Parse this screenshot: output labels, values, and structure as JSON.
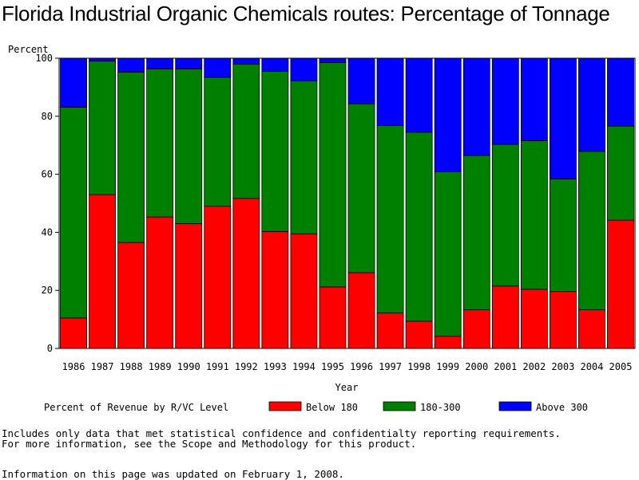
{
  "chart_data": {
    "type": "bar",
    "stacked": true,
    "title": "Florida Industrial Organic Chemicals routes: Percentage of Tonnage",
    "ylabel": "Percent",
    "xlabel": "Year",
    "ylim": [
      0,
      100
    ],
    "yticks": [
      0,
      20,
      40,
      60,
      80,
      100
    ],
    "categories": [
      "1986",
      "1987",
      "1988",
      "1989",
      "1990",
      "1991",
      "1992",
      "1993",
      "1994",
      "1995",
      "1996",
      "1997",
      "1998",
      "1999",
      "2000",
      "2001",
      "2002",
      "2003",
      "2004",
      "2005"
    ],
    "legend_title": "Percent of Revenue by R/VC Level",
    "legend_position": "bottom",
    "series": [
      {
        "name": "Below 180",
        "color": "#ff0000",
        "values": [
          10.5,
          53,
          36.5,
          45.3,
          43,
          49,
          51.7,
          40.3,
          39.5,
          21.2,
          26.1,
          12.2,
          9.4,
          4.2,
          13.3,
          21.5,
          20.4,
          19.6,
          13.3,
          44.2
        ]
      },
      {
        "name": "180-300",
        "color": "#008000",
        "values": [
          72.6,
          46,
          58.7,
          51,
          53.3,
          44.4,
          46.3,
          55.2,
          52.7,
          77.3,
          58.2,
          64.6,
          65.1,
          56.7,
          53.2,
          48.8,
          51.2,
          38.8,
          54.6,
          32.4
        ]
      },
      {
        "name": "Above 300",
        "color": "#0000ff",
        "values": [
          16.9,
          1,
          4.8,
          3.7,
          3.7,
          6.6,
          2,
          4.5,
          7.8,
          1.5,
          15.7,
          23.2,
          25.5,
          39.1,
          33.5,
          29.7,
          28.4,
          41.6,
          32.1,
          23.4
        ]
      }
    ]
  },
  "footnotes": {
    "line1": "Includes only data that met statistical confidence and confidentialty reporting requirements.",
    "line2": "For more information, see the Scope and Methodology for this product.",
    "updated": "Information on this page was updated on February 1, 2008."
  }
}
